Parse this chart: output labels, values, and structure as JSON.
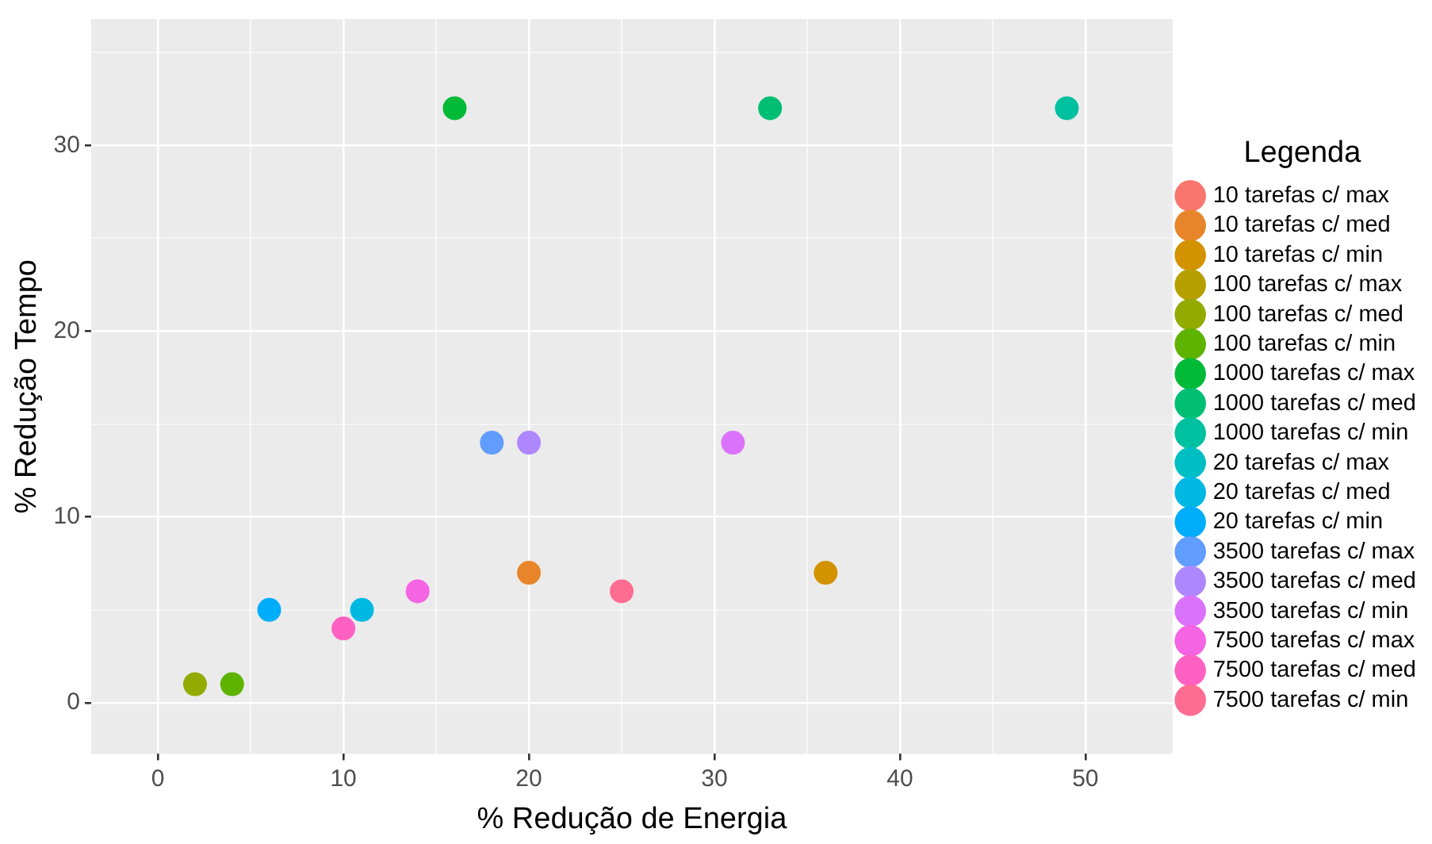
{
  "chart_data": {
    "type": "scatter",
    "xlabel": "% Redução de Energia",
    "ylabel": "% Redução Tempo",
    "legend_title": "Legenda",
    "legend": "right",
    "grid": true,
    "marker": "circle",
    "xlim": [
      -3.6,
      54.7
    ],
    "ylim": [
      -2.75,
      36.8
    ],
    "xticks": [
      0,
      {
        "value": 5,
        "label": null
      },
      10,
      {
        "value": 15,
        "label": null
      },
      20,
      {
        "value": 25,
        "label": null
      },
      30,
      {
        "value": 35,
        "label": null
      },
      40,
      {
        "value": 45,
        "label": null
      },
      50
    ],
    "yticks": [
      0,
      {
        "value": 5,
        "label": null
      },
      10,
      {
        "value": 15,
        "label": null
      },
      20,
      {
        "value": 25,
        "label": null
      },
      30,
      {
        "value": 35,
        "label": null
      }
    ],
    "series": [
      {
        "name": "10 tarefas c/ max",
        "color": "#f8766d",
        "x": [
          null
        ],
        "values": [
          null
        ]
      },
      {
        "name": "10 tarefas c/ med",
        "color": "#e8852b",
        "x": [
          20
        ],
        "values": [
          7
        ]
      },
      {
        "name": "10 tarefas c/ min",
        "color": "#d39200",
        "x": [
          36
        ],
        "values": [
          7
        ]
      },
      {
        "name": "100 tarefas c/ max",
        "color": "#b79f00",
        "x": [
          null
        ],
        "values": [
          null
        ]
      },
      {
        "name": "100 tarefas c/ med",
        "color": "#93aa00",
        "x": [
          2
        ],
        "values": [
          1
        ]
      },
      {
        "name": "100 tarefas c/ min",
        "color": "#5eb300",
        "x": [
          4
        ],
        "values": [
          1
        ]
      },
      {
        "name": "1000 tarefas c/ max",
        "color": "#00ba38",
        "x": [
          16
        ],
        "values": [
          32
        ]
      },
      {
        "name": "1000 tarefas c/ med",
        "color": "#00bf74",
        "x": [
          33
        ],
        "values": [
          32
        ]
      },
      {
        "name": "1000 tarefas c/ min",
        "color": "#00c19f",
        "x": [
          49
        ],
        "values": [
          32
        ]
      },
      {
        "name": "20 tarefas c/ max",
        "color": "#00bfc4",
        "x": [
          null
        ],
        "values": [
          null
        ]
      },
      {
        "name": "20 tarefas c/ med",
        "color": "#00b9e3",
        "x": [
          11
        ],
        "values": [
          5
        ]
      },
      {
        "name": "20 tarefas c/ min",
        "color": "#00adfa",
        "x": [
          6
        ],
        "values": [
          5
        ]
      },
      {
        "name": "3500 tarefas c/ max",
        "color": "#619cff",
        "x": [
          18
        ],
        "values": [
          14
        ]
      },
      {
        "name": "3500 tarefas c/ med",
        "color": "#ae87ff",
        "x": [
          20
        ],
        "values": [
          14
        ]
      },
      {
        "name": "3500 tarefas c/ min",
        "color": "#db72fb",
        "x": [
          31
        ],
        "values": [
          14
        ]
      },
      {
        "name": "7500 tarefas c/ max",
        "color": "#f564e3",
        "x": [
          14
        ],
        "values": [
          6
        ]
      },
      {
        "name": "7500 tarefas c/ med",
        "color": "#ff61c3",
        "x": [
          10
        ],
        "values": [
          4
        ]
      },
      {
        "name": "7500 tarefas c/ min",
        "color": "#ff6c91",
        "x": [
          25
        ],
        "values": [
          6
        ]
      }
    ]
  }
}
